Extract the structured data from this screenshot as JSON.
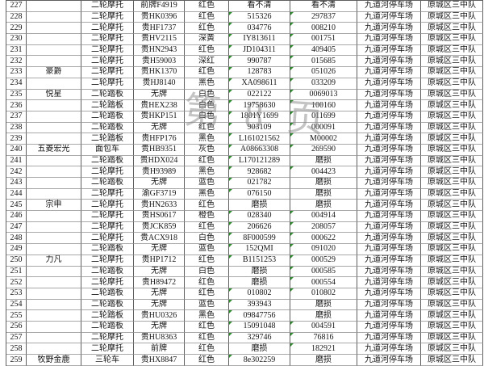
{
  "watermark": {
    "text": "第 8 页"
  },
  "page_break": {
    "after_seq": "250"
  },
  "colors": {
    "grid_vertical": "#5f5f5f",
    "grid_horizontal": "#a9a9a9",
    "page_break_dashed_blue": "#3434d2",
    "page_break_solid_blue": "#5b5bc8",
    "error_triangle_green": "#2e8b2e",
    "watermark_gray": "#8a8a8a"
  },
  "shared": {
    "parking_lot": "九道河停车场",
    "unit": "原城区三中队"
  },
  "not_readable_markers": [
    "磨损",
    "看不清"
  ],
  "table": {
    "rows": [
      {
        "seq": "227",
        "brand": "",
        "type": "二轮摩托",
        "plate": "前牌F4919",
        "color": "红色",
        "engine": "看不清",
        "frame": "看不清"
      },
      {
        "seq": "228",
        "brand": "",
        "type": "二轮摩托",
        "plate": "贵HK0396",
        "color": "红色",
        "engine": "515326",
        "frame": "297837"
      },
      {
        "seq": "229",
        "brand": "",
        "type": "二轮摩托",
        "plate": "贵HF1737",
        "color": "红色",
        "engine": "034776",
        "frame": "008210"
      },
      {
        "seq": "230",
        "brand": "",
        "type": "二轮摩托",
        "plate": "贵HV2115",
        "color": "深黄",
        "engine": "IY813611",
        "frame": "001751"
      },
      {
        "seq": "231",
        "brand": "",
        "type": "二轮摩托",
        "plate": "贵HN2943",
        "color": "红色",
        "engine": "JD104311",
        "frame": "409405"
      },
      {
        "seq": "232",
        "brand": "",
        "type": "二轮摩托",
        "plate": "贵H59003",
        "color": "深红",
        "engine": "990787",
        "frame": "015685"
      },
      {
        "seq": "233",
        "brand": "豪爵",
        "type": "二轮摩托",
        "plate": "贵HK1370",
        "color": "红色",
        "engine": "128783",
        "frame": "051026"
      },
      {
        "seq": "234",
        "brand": "",
        "type": "二轮摩托",
        "plate": "贵HJ8140",
        "color": "黑色",
        "engine": "XA098611",
        "frame": "033209"
      },
      {
        "seq": "235",
        "brand": "悦星",
        "type": "二轮踏板",
        "plate": "无牌",
        "color": "白色",
        "engine": "022122",
        "frame": "0069013"
      },
      {
        "seq": "236",
        "brand": "",
        "type": "二轮踏板",
        "plate": "贵HEX238",
        "color": "白色",
        "engine": "19758630",
        "frame": "100160"
      },
      {
        "seq": "237",
        "brand": "",
        "type": "二轮踏板",
        "plate": "贵HKP151",
        "color": "白色",
        "engine": "1801Y1699",
        "frame": "011699"
      },
      {
        "seq": "238",
        "brand": "",
        "type": "二轮踏板",
        "plate": "无牌",
        "color": "红色",
        "engine": "903109",
        "frame": "000091"
      },
      {
        "seq": "239",
        "brand": "",
        "type": "二轮踏板",
        "plate": "贵HFP176",
        "color": "黑色",
        "engine": "L161021562",
        "frame": "M00002"
      },
      {
        "seq": "240",
        "brand": "五菱宏光",
        "type": "面包车",
        "plate": "贵HB9351",
        "color": "灰色",
        "engine": "A08663308",
        "frame": "269590"
      },
      {
        "seq": "241",
        "brand": "",
        "type": "二轮踏板",
        "plate": "贵HDX024",
        "color": "红色",
        "engine": "L170121289",
        "frame": "磨损"
      },
      {
        "seq": "242",
        "brand": "",
        "type": "二轮摩托",
        "plate": "贵H93989",
        "color": "黑色",
        "engine": "928682",
        "frame": "004423"
      },
      {
        "seq": "243",
        "brand": "",
        "type": "二轮踏板",
        "plate": "无牌",
        "color": "蓝色",
        "engine": "021782",
        "frame": "磨损"
      },
      {
        "seq": "244",
        "brand": "",
        "type": "二轮摩托",
        "plate": "渝GF3719",
        "color": "黑色",
        "engine": "076150",
        "frame": "磨损"
      },
      {
        "seq": "245",
        "brand": "宗申",
        "type": "二轮摩托",
        "plate": "贵HN2633",
        "color": "红色",
        "engine": "磨损",
        "frame": "磨损"
      },
      {
        "seq": "246",
        "brand": "",
        "type": "二轮摩托",
        "plate": "贵HS0617",
        "color": "橙色",
        "engine": "028340",
        "frame": "004914"
      },
      {
        "seq": "247",
        "brand": "",
        "type": "二轮摩托",
        "plate": "贵JCK859",
        "color": "红色",
        "engine": "206626",
        "frame": "208057"
      },
      {
        "seq": "248",
        "brand": "",
        "type": "二轮摩托",
        "plate": "贵ACX918",
        "color": "白色",
        "engine": "8F000599",
        "frame": "000622"
      },
      {
        "seq": "249",
        "brand": "",
        "type": "二轮踏板",
        "plate": "无牌",
        "color": "蓝色",
        "engine": "152QMI",
        "frame": "091020"
      },
      {
        "seq": "250",
        "brand": "力凡",
        "type": "二轮摩托",
        "plate": "贵HP1712",
        "color": "红色",
        "engine": "B1151253",
        "frame": "000529"
      },
      {
        "seq": "251",
        "brand": "",
        "type": "二轮踏板",
        "plate": "无牌",
        "color": "白色",
        "engine": "磨损",
        "frame": "000585"
      },
      {
        "seq": "252",
        "brand": "",
        "type": "二轮摩托",
        "plate": "贵H89472",
        "color": "红色",
        "engine": "磨损",
        "frame": "000554"
      },
      {
        "seq": "253",
        "brand": "",
        "type": "二轮踏板",
        "plate": "无牌",
        "color": "红色",
        "engine": "010802",
        "frame": "010802"
      },
      {
        "seq": "254",
        "brand": "",
        "type": "二轮踏板",
        "plate": "无牌",
        "color": "蓝色",
        "engine": "393943",
        "frame": "磨损"
      },
      {
        "seq": "255",
        "brand": "",
        "type": "二轮踏板",
        "plate": "贵HU0326",
        "color": "黑色",
        "engine": "09847756",
        "frame": "磨损"
      },
      {
        "seq": "256",
        "brand": "",
        "type": "二轮踏板",
        "plate": "无牌",
        "color": "红色",
        "engine": "15091048",
        "frame": "004591"
      },
      {
        "seq": "257",
        "brand": "",
        "type": "二轮摩托",
        "plate": "贵HU8363",
        "color": "红色",
        "engine": "329746",
        "frame": "76816"
      },
      {
        "seq": "258",
        "brand": "",
        "type": "二轮摩托",
        "plate": "前牌",
        "color": "红色",
        "engine": "磨损",
        "frame": "182921"
      },
      {
        "seq": "259",
        "brand": "牧野金鹿",
        "type": "三轮车",
        "plate": "贵HX8847",
        "color": "红色",
        "engine": "8e302259",
        "frame": "磨损"
      }
    ]
  }
}
